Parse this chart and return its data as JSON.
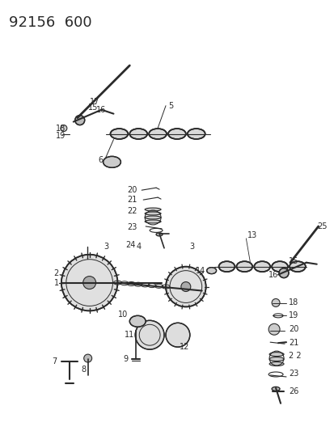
{
  "title": "92156  600",
  "bg_color": "#ffffff",
  "line_color": "#2a2a2a",
  "figsize": [
    4.14,
    5.33
  ],
  "dpi": 100
}
